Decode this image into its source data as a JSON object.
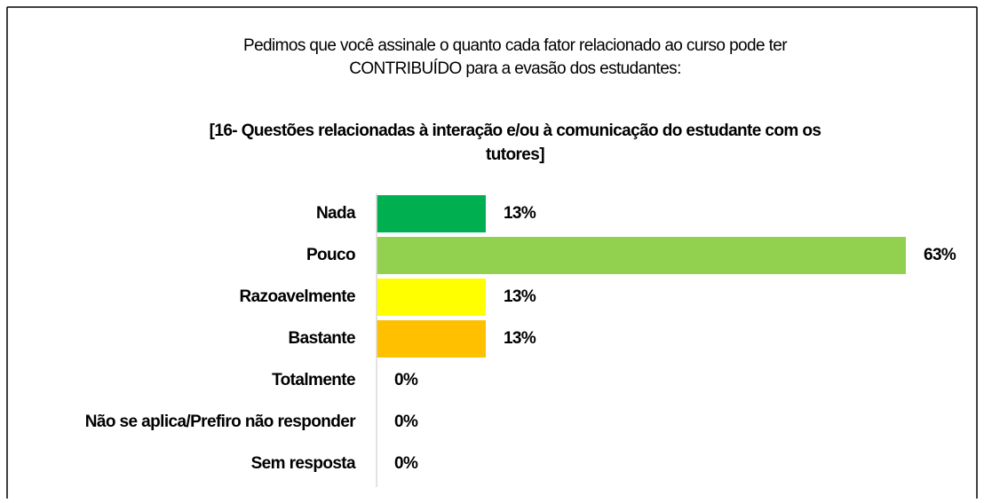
{
  "chart_data": {
    "type": "bar",
    "orientation": "horizontal",
    "title": [
      "Pedimos que você assinale o quanto cada fator  relacionado ao curso pode ter",
      "CONTRIBUÍDO para a evasão dos estudantes:"
    ],
    "subtitle": [
      "[16- Questões relacionadas à interação e/ou à comunicação do estudante com os",
      "tutores]"
    ],
    "categories": [
      "Nada",
      "Pouco",
      "Razoavelmente",
      "Bastante",
      "Totalmente",
      "Não se aplica/Prefiro não responder",
      "Sem resposta"
    ],
    "values": [
      13,
      63,
      13,
      13,
      0,
      0,
      0
    ],
    "value_labels": [
      "13%",
      "63%",
      "13%",
      "13%",
      "0%",
      "0%",
      "0%"
    ],
    "colors": [
      "#00b050",
      "#92d050",
      "#ffff00",
      "#ffc000",
      "#a5a5a5",
      "#5b9bd5",
      "#7f7f7f"
    ],
    "xlim": [
      0,
      63
    ]
  }
}
